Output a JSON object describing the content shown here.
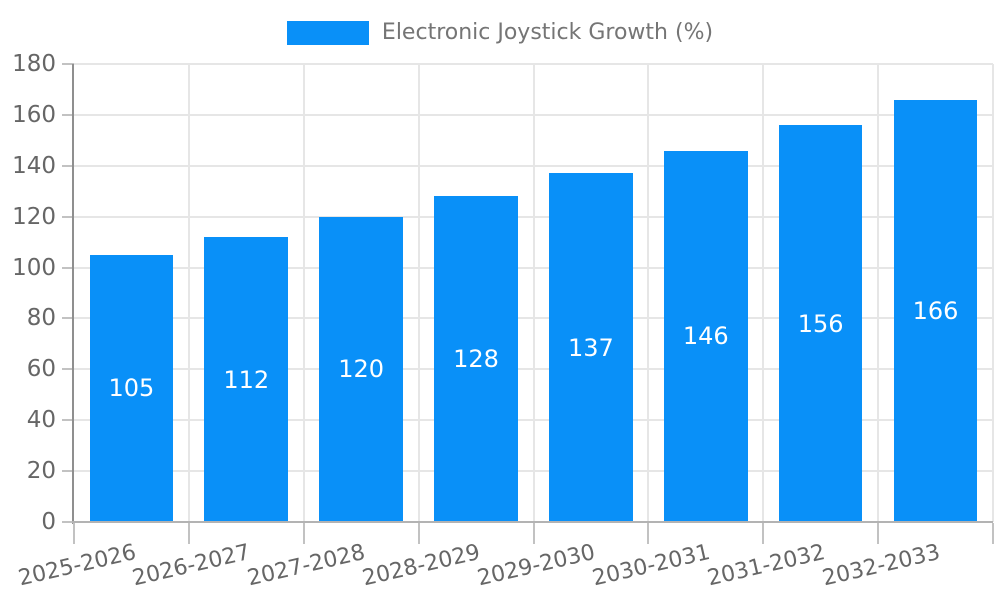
{
  "chart_data": {
    "type": "bar",
    "title": "Electronic Joystick Growth (%)",
    "categories": [
      "2025-2026",
      "2026-2027",
      "2027-2028",
      "2028-2029",
      "2029-2030",
      "2030-2031",
      "2031-2032",
      "2032-2033"
    ],
    "values": [
      105,
      112,
      120,
      128,
      137,
      146,
      156,
      166
    ],
    "series": [
      {
        "name": "Electronic Joystick Growth (%)",
        "values": [
          105,
          112,
          120,
          128,
          137,
          146,
          156,
          166
        ]
      }
    ],
    "xlabel": "",
    "ylabel": "",
    "ylim": [
      0,
      180
    ],
    "yticks": [
      0,
      20,
      40,
      60,
      80,
      100,
      120,
      140,
      160,
      180
    ],
    "grid": true,
    "legend_position": "top",
    "data_labels": "inside-center",
    "colors": {
      "bar": "#0990f8",
      "data_label": "#ffffff",
      "gridline": "#e6e6e6",
      "y_axis_line": "#8f8f8f",
      "x_axis_line": "#b3b3b3",
      "tick_mark": "#c2c2c2",
      "tick_text": "#666666",
      "legend_text": "#757575"
    }
  }
}
